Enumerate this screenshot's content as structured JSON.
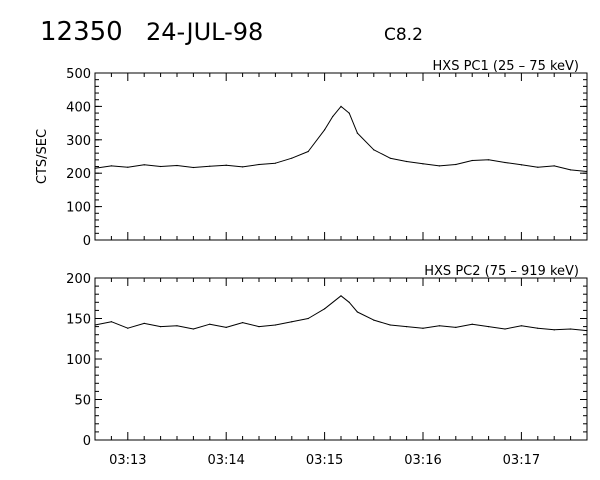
{
  "header": {
    "event_id": "12350",
    "date": "24-JUL-98",
    "flare_class": "C8.2"
  },
  "colors": {
    "background": "#ffffff",
    "ink": "#000000"
  },
  "chart_data": [
    {
      "type": "line",
      "title": "HXS PC1 (25 – 75 keV)",
      "xlabel": "",
      "ylabel": "CTS/SEC",
      "ylim": [
        0,
        500
      ],
      "yticks": [
        "0",
        "100",
        "200",
        "300",
        "400",
        "500"
      ],
      "xlim": [
        "03:12:40",
        "03:17:40"
      ],
      "xticks": [
        "03:13",
        "03:14",
        "03:15",
        "03:16",
        "03:17"
      ],
      "show_x_tick_labels": false,
      "grid": false,
      "series": [
        {
          "points": [
            [
              "03:12:40",
              215
            ],
            [
              "03:12:50",
              222
            ],
            [
              "03:13:00",
              218
            ],
            [
              "03:13:10",
              225
            ],
            [
              "03:13:20",
              220
            ],
            [
              "03:13:30",
              223
            ],
            [
              "03:13:40",
              217
            ],
            [
              "03:13:50",
              221
            ],
            [
              "03:14:00",
              224
            ],
            [
              "03:14:10",
              219
            ],
            [
              "03:14:20",
              226
            ],
            [
              "03:14:30",
              230
            ],
            [
              "03:14:40",
              245
            ],
            [
              "03:14:50",
              265
            ],
            [
              "03:15:00",
              330
            ],
            [
              "03:15:05",
              370
            ],
            [
              "03:15:10",
              400
            ],
            [
              "03:15:15",
              380
            ],
            [
              "03:15:20",
              320
            ],
            [
              "03:15:30",
              270
            ],
            [
              "03:15:40",
              245
            ],
            [
              "03:15:50",
              235
            ],
            [
              "03:16:00",
              228
            ],
            [
              "03:16:10",
              222
            ],
            [
              "03:16:20",
              226
            ],
            [
              "03:16:30",
              238
            ],
            [
              "03:16:40",
              240
            ],
            [
              "03:16:50",
              232
            ],
            [
              "03:17:00",
              225
            ],
            [
              "03:17:10",
              218
            ],
            [
              "03:17:20",
              222
            ],
            [
              "03:17:30",
              210
            ],
            [
              "03:17:40",
              205
            ]
          ]
        }
      ]
    },
    {
      "type": "line",
      "title": "HXS PC2 (75 – 919 keV)",
      "xlabel": "",
      "ylabel": "",
      "ylim": [
        0,
        200
      ],
      "yticks": [
        "0",
        "50",
        "100",
        "150",
        "200"
      ],
      "xlim": [
        "03:12:40",
        "03:17:40"
      ],
      "xticks": [
        "03:13",
        "03:14",
        "03:15",
        "03:16",
        "03:17"
      ],
      "show_x_tick_labels": true,
      "grid": false,
      "series": [
        {
          "points": [
            [
              "03:12:40",
              142
            ],
            [
              "03:12:50",
              146
            ],
            [
              "03:13:00",
              138
            ],
            [
              "03:13:10",
              144
            ],
            [
              "03:13:20",
              140
            ],
            [
              "03:13:30",
              141
            ],
            [
              "03:13:40",
              137
            ],
            [
              "03:13:50",
              143
            ],
            [
              "03:14:00",
              139
            ],
            [
              "03:14:10",
              145
            ],
            [
              "03:14:20",
              140
            ],
            [
              "03:14:30",
              142
            ],
            [
              "03:14:40",
              146
            ],
            [
              "03:14:50",
              150
            ],
            [
              "03:15:00",
              162
            ],
            [
              "03:15:10",
              178
            ],
            [
              "03:15:15",
              170
            ],
            [
              "03:15:20",
              158
            ],
            [
              "03:15:30",
              148
            ],
            [
              "03:15:40",
              142
            ],
            [
              "03:15:50",
              140
            ],
            [
              "03:16:00",
              138
            ],
            [
              "03:16:10",
              141
            ],
            [
              "03:16:20",
              139
            ],
            [
              "03:16:30",
              143
            ],
            [
              "03:16:40",
              140
            ],
            [
              "03:16:50",
              137
            ],
            [
              "03:17:00",
              141
            ],
            [
              "03:17:10",
              138
            ],
            [
              "03:17:20",
              136
            ],
            [
              "03:17:30",
              137
            ],
            [
              "03:17:40",
              135
            ]
          ]
        }
      ]
    }
  ]
}
